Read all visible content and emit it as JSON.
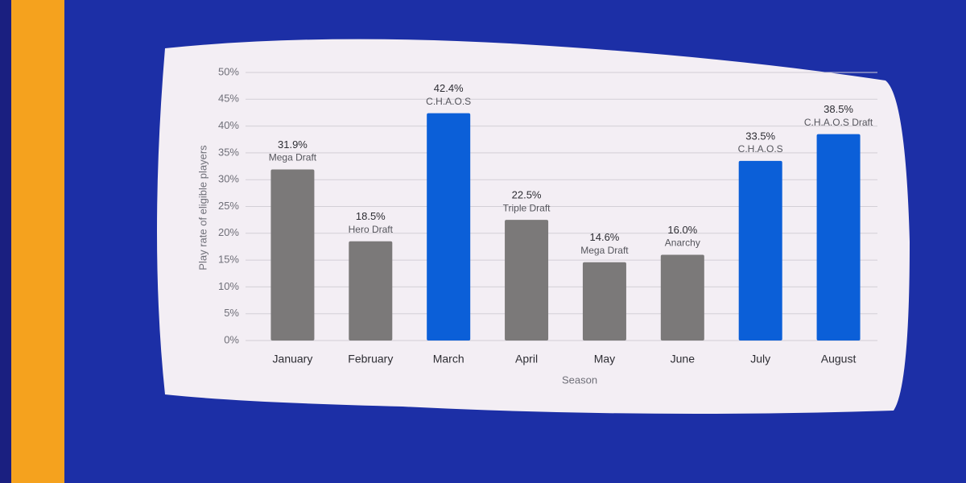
{
  "chart_data": {
    "type": "bar",
    "y_label": "Play rate of eligible players",
    "x_label": "Season",
    "categories": [
      "January",
      "February",
      "March",
      "April",
      "May",
      "June",
      "July",
      "August"
    ],
    "values": [
      31.9,
      18.5,
      42.4,
      22.5,
      14.6,
      16.0,
      33.5,
      38.5
    ],
    "value_labels": [
      "31.9%",
      "18.5%",
      "42.4%",
      "22.5%",
      "14.6%",
      "16.0%",
      "33.5%",
      "38.5%"
    ],
    "modes": [
      "Mega Draft",
      "Hero Draft",
      "C.H.A.O.S",
      "Triple Draft",
      "Mega Draft",
      "Anarchy",
      "C.H.A.O.S",
      "C.H.A.O.S Draft"
    ],
    "colors": [
      "#7b7979",
      "#7b7979",
      "#0b5fd8",
      "#7b7979",
      "#7b7979",
      "#7b7979",
      "#0b5fd8",
      "#0b5fd8"
    ],
    "ylim": [
      0,
      50
    ],
    "yticks": [
      {
        "value": 0,
        "label": "0%"
      },
      {
        "value": 5,
        "label": "5%"
      },
      {
        "value": 10,
        "label": "10%"
      },
      {
        "value": 15,
        "label": "15%"
      },
      {
        "value": 20,
        "label": "20%"
      },
      {
        "value": 25,
        "label": "25%"
      },
      {
        "value": 30,
        "label": "30%"
      },
      {
        "value": 35,
        "label": "35%"
      },
      {
        "value": 40,
        "label": "40%"
      },
      {
        "value": 45,
        "label": "45%"
      },
      {
        "value": 50,
        "label": "50%"
      }
    ],
    "grid": true
  }
}
